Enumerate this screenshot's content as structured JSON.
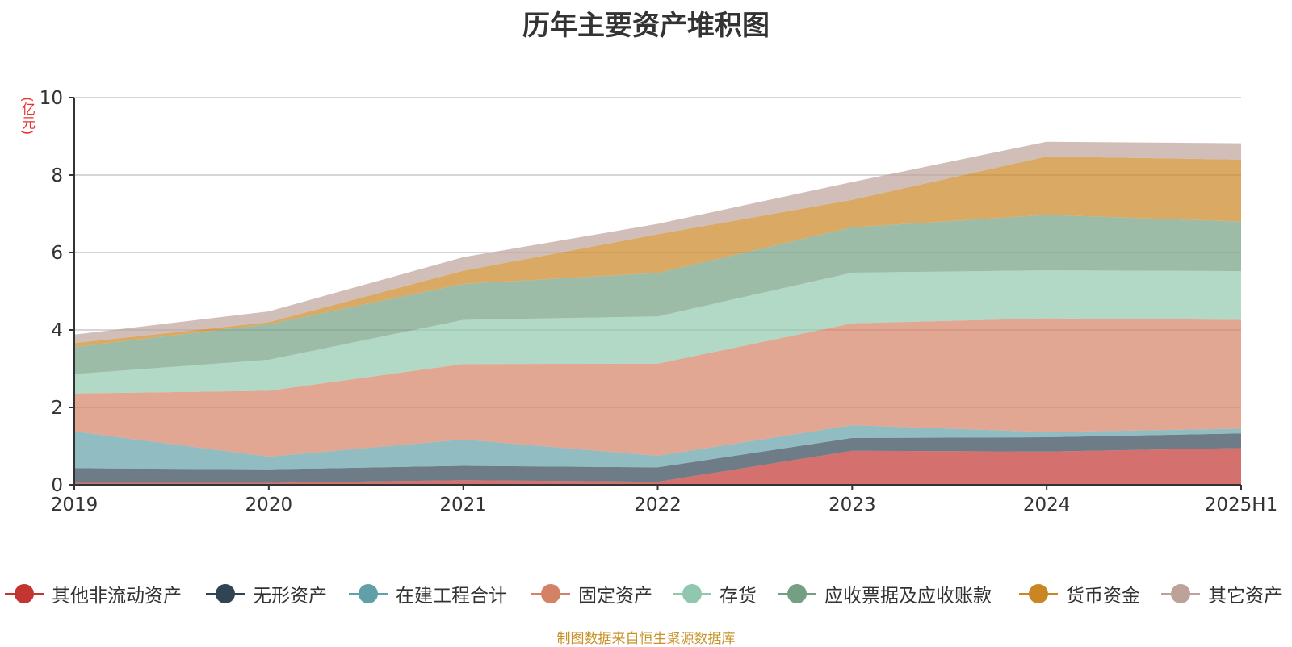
{
  "title": "历年主要资产堆积图",
  "y_unit": "(亿元)",
  "source_note": "制图数据来自恒生聚源数据库",
  "chart_data": {
    "type": "area",
    "stacked": true,
    "categories": [
      "2019",
      "2020",
      "2021",
      "2022",
      "2023",
      "2024",
      "2025H1"
    ],
    "ylim": [
      0,
      10
    ],
    "yticks": [
      0,
      2,
      4,
      6,
      8,
      10
    ],
    "grid": true,
    "legend_position": "bottom",
    "series": [
      {
        "name": "其他非流动资产",
        "color": "#c23531",
        "values": [
          0.05,
          0.05,
          0.12,
          0.08,
          0.88,
          0.86,
          0.95
        ]
      },
      {
        "name": "无形资产",
        "color": "#2f4554",
        "values": [
          0.38,
          0.35,
          0.37,
          0.37,
          0.33,
          0.37,
          0.38
        ]
      },
      {
        "name": "在建工程合计",
        "color": "#61a0a8",
        "values": [
          0.95,
          0.33,
          0.68,
          0.3,
          0.33,
          0.13,
          0.12
        ]
      },
      {
        "name": "固定资产",
        "color": "#d48265",
        "values": [
          0.98,
          1.7,
          1.95,
          2.38,
          2.63,
          2.94,
          2.81
        ]
      },
      {
        "name": "存货",
        "color": "#91c7ae",
        "values": [
          0.5,
          0.8,
          1.14,
          1.22,
          1.31,
          1.24,
          1.26
        ]
      },
      {
        "name": "应收票据及应收账款",
        "color": "#749f83",
        "values": [
          0.7,
          0.92,
          0.93,
          1.12,
          1.17,
          1.43,
          1.28
        ]
      },
      {
        "name": "货币资金",
        "color": "#ca8622",
        "values": [
          0.1,
          0.05,
          0.34,
          1.0,
          0.71,
          1.51,
          1.6
        ]
      },
      {
        "name": "其它资产",
        "color": "#bda29a",
        "values": [
          0.22,
          0.28,
          0.35,
          0.27,
          0.46,
          0.38,
          0.42
        ]
      }
    ]
  }
}
